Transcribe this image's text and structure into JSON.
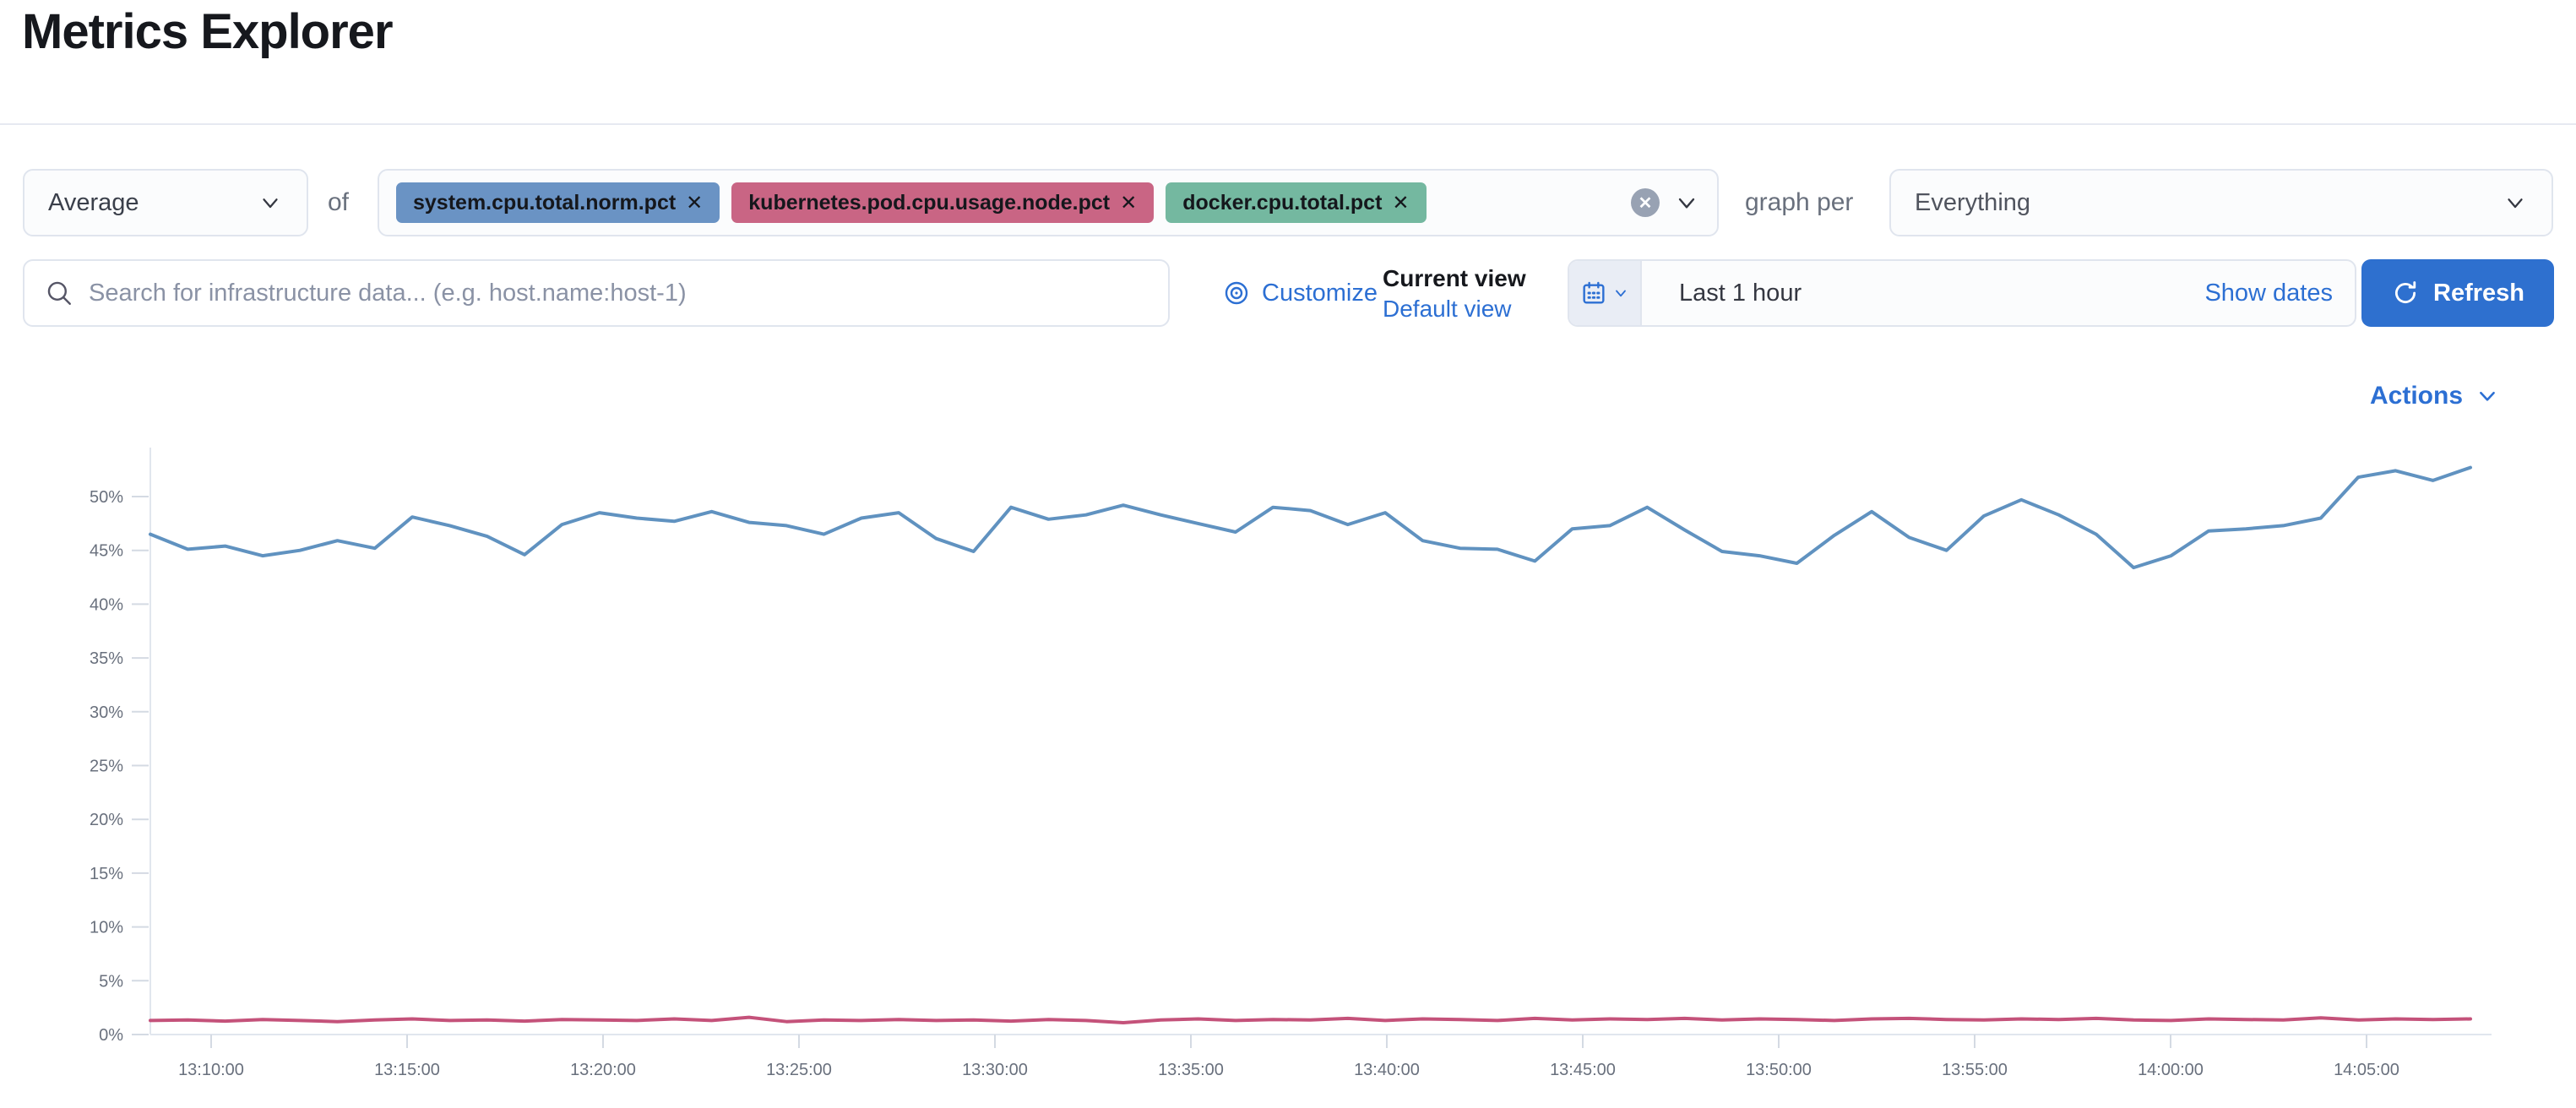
{
  "page": {
    "title": "Metrics Explorer"
  },
  "toolbar": {
    "aggregation": {
      "value": "Average"
    },
    "of_label": "of",
    "metrics": [
      {
        "label": "system.cpu.total.norm.pct",
        "color": "#6a93c4"
      },
      {
        "label": "kubernetes.pod.cpu.usage.node.pct",
        "color": "#c96584"
      },
      {
        "label": "docker.cpu.total.pct",
        "color": "#74b8a0"
      }
    ],
    "remove_glyph": "✕",
    "clear_glyph": "✕",
    "graph_per_label": "graph per",
    "group_by": {
      "value": "Everything"
    }
  },
  "searchbar": {
    "placeholder": "Search for infrastructure data... (e.g. host.name:host-1)",
    "customize_label": "Customize",
    "current_view_label": "Current view",
    "default_view_label": "Default view",
    "time_range": {
      "value": "Last 1 hour",
      "show_dates_label": "Show dates"
    },
    "refresh_label": "Refresh"
  },
  "chart": {
    "actions_label": "Actions"
  },
  "colors": {
    "link_blue": "#2c6fd3",
    "refresh_button": "#2e70cf",
    "series_blue": "#6092c0",
    "series_pink": "#c4527a",
    "axis_line": "#e1e6ee",
    "tick_mark": "#d4dae3",
    "tick_text": "#69707d"
  },
  "chart_data": {
    "type": "line",
    "title": "",
    "xlabel": "",
    "ylabel": "",
    "x_axis": {
      "ticks": [
        "13:10:00",
        "13:15:00",
        "13:20:00",
        "13:25:00",
        "13:30:00",
        "13:35:00",
        "13:40:00",
        "13:45:00",
        "13:50:00",
        "13:55:00",
        "14:00:00",
        "14:05:00"
      ],
      "start": "13:08:30",
      "end": "14:07:30"
    },
    "y_axis": {
      "min": 0,
      "max": 55,
      "tick_step": 5,
      "tick_labels": [
        "0%",
        "5%",
        "10%",
        "15%",
        "20%",
        "25%",
        "30%",
        "35%",
        "40%",
        "45%",
        "50%"
      ]
    },
    "grid": false,
    "legend": "none",
    "series": [
      {
        "name": "series_blue",
        "color": "#6092c0",
        "values": [
          46.5,
          45.1,
          45.4,
          44.5,
          45.0,
          45.9,
          45.2,
          48.1,
          47.3,
          46.3,
          44.6,
          47.4,
          48.5,
          48.0,
          47.7,
          48.6,
          47.6,
          47.3,
          46.5,
          48.0,
          48.5,
          46.1,
          44.9,
          49.0,
          47.9,
          48.3,
          49.2,
          48.3,
          47.5,
          46.7,
          49.0,
          48.7,
          47.4,
          48.5,
          45.9,
          45.2,
          45.1,
          44.0,
          47.0,
          47.3,
          49.0,
          46.9,
          44.9,
          44.5,
          43.8,
          46.4,
          48.6,
          46.2,
          45.0,
          48.2,
          49.7,
          48.3,
          46.5,
          43.4,
          44.5,
          46.8,
          47.0,
          47.3,
          48.0,
          51.8,
          52.4,
          51.5,
          52.7
        ]
      },
      {
        "name": "series_pink",
        "color": "#c4527a",
        "values": [
          1.3,
          1.35,
          1.25,
          1.4,
          1.3,
          1.2,
          1.35,
          1.45,
          1.3,
          1.35,
          1.25,
          1.4,
          1.35,
          1.3,
          1.45,
          1.3,
          1.6,
          1.2,
          1.35,
          1.3,
          1.4,
          1.3,
          1.35,
          1.25,
          1.4,
          1.3,
          1.1,
          1.35,
          1.45,
          1.3,
          1.4,
          1.35,
          1.5,
          1.3,
          1.45,
          1.4,
          1.3,
          1.5,
          1.35,
          1.45,
          1.4,
          1.5,
          1.35,
          1.45,
          1.4,
          1.3,
          1.45,
          1.5,
          1.4,
          1.35,
          1.45,
          1.4,
          1.5,
          1.35,
          1.3,
          1.45,
          1.4,
          1.35,
          1.55,
          1.35,
          1.45,
          1.4,
          1.45
        ]
      }
    ]
  }
}
